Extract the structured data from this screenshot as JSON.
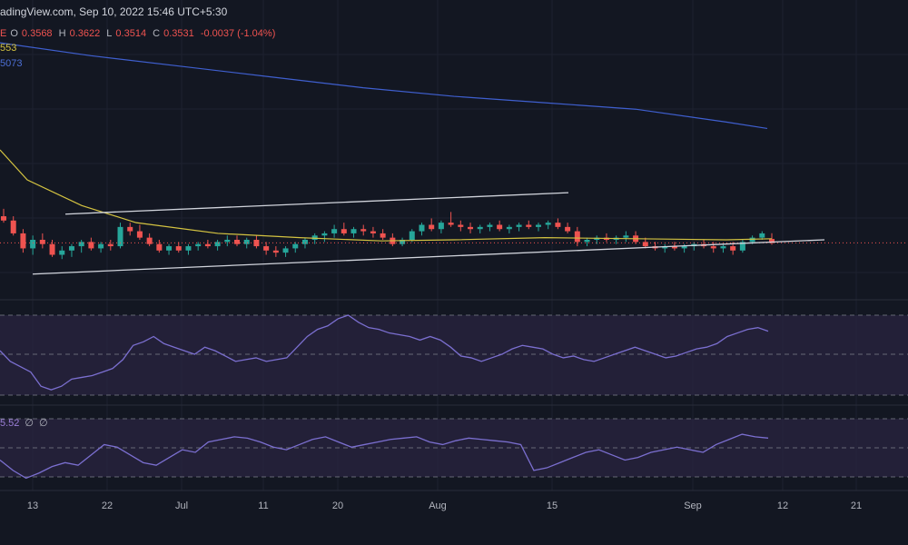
{
  "header": {
    "source": "adingView.com, Sep 10, 2022 15:46 UTC+5:30"
  },
  "ohlc": {
    "o_label": "O",
    "o": "0.3568",
    "h_label": "H",
    "h": "0.3622",
    "l_label": "L",
    "l": "0.3514",
    "c_label": "C",
    "c": "0.3531",
    "chg": "-0.0037 (-1.04%)",
    "prefix": "E"
  },
  "ma_fast": {
    "value": "553"
  },
  "ma_slow": {
    "value": "5073"
  },
  "indicator2": {
    "value": "5.52",
    "param1": "∅",
    "param2": "∅"
  },
  "colors": {
    "background": "#131722",
    "up": "#26a69a",
    "down": "#ef5350",
    "ma_fast": "#d4c341",
    "ma_slow": "#3f5fcf",
    "oscillator": "#7b6fd0",
    "band": "#2a2440",
    "trendline": "#d1d4dc"
  },
  "chart_data": {
    "type": "candlestick",
    "price_min": 0.3,
    "price_max": 0.58,
    "x_ticks": [
      "13",
      "22",
      "Jul",
      "11",
      "20",
      "Aug",
      "15",
      "Sep",
      "12",
      "21"
    ],
    "last_price": 0.3531,
    "candles": [
      [
        0.378,
        0.385,
        0.372,
        0.374
      ],
      [
        0.374,
        0.378,
        0.36,
        0.362
      ],
      [
        0.362,
        0.366,
        0.344,
        0.348
      ],
      [
        0.348,
        0.36,
        0.342,
        0.356
      ],
      [
        0.356,
        0.362,
        0.348,
        0.352
      ],
      [
        0.352,
        0.356,
        0.34,
        0.342
      ],
      [
        0.342,
        0.35,
        0.338,
        0.346
      ],
      [
        0.346,
        0.352,
        0.34,
        0.35
      ],
      [
        0.35,
        0.356,
        0.344,
        0.354
      ],
      [
        0.354,
        0.358,
        0.346,
        0.348
      ],
      [
        0.348,
        0.354,
        0.344,
        0.352
      ],
      [
        0.352,
        0.356,
        0.346,
        0.35
      ],
      [
        0.35,
        0.372,
        0.348,
        0.368
      ],
      [
        0.368,
        0.372,
        0.36,
        0.364
      ],
      [
        0.364,
        0.37,
        0.356,
        0.358
      ],
      [
        0.358,
        0.362,
        0.35,
        0.352
      ],
      [
        0.352,
        0.356,
        0.344,
        0.346
      ],
      [
        0.346,
        0.352,
        0.342,
        0.35
      ],
      [
        0.35,
        0.354,
        0.344,
        0.346
      ],
      [
        0.346,
        0.352,
        0.342,
        0.35
      ],
      [
        0.35,
        0.354,
        0.346,
        0.352
      ],
      [
        0.352,
        0.356,
        0.348,
        0.35
      ],
      [
        0.35,
        0.356,
        0.346,
        0.354
      ],
      [
        0.354,
        0.36,
        0.35,
        0.356
      ],
      [
        0.356,
        0.36,
        0.35,
        0.352
      ],
      [
        0.352,
        0.358,
        0.348,
        0.356
      ],
      [
        0.356,
        0.36,
        0.348,
        0.35
      ],
      [
        0.35,
        0.354,
        0.342,
        0.346
      ],
      [
        0.346,
        0.35,
        0.34,
        0.344
      ],
      [
        0.344,
        0.35,
        0.34,
        0.348
      ],
      [
        0.348,
        0.354,
        0.344,
        0.352
      ],
      [
        0.352,
        0.358,
        0.348,
        0.356
      ],
      [
        0.356,
        0.362,
        0.352,
        0.36
      ],
      [
        0.36,
        0.364,
        0.354,
        0.362
      ],
      [
        0.362,
        0.37,
        0.358,
        0.366
      ],
      [
        0.366,
        0.372,
        0.36,
        0.362
      ],
      [
        0.362,
        0.368,
        0.358,
        0.366
      ],
      [
        0.366,
        0.37,
        0.36,
        0.364
      ],
      [
        0.364,
        0.368,
        0.358,
        0.362
      ],
      [
        0.362,
        0.366,
        0.356,
        0.358
      ],
      [
        0.358,
        0.362,
        0.35,
        0.352
      ],
      [
        0.352,
        0.358,
        0.35,
        0.356
      ],
      [
        0.356,
        0.366,
        0.354,
        0.364
      ],
      [
        0.364,
        0.372,
        0.36,
        0.37
      ],
      [
        0.37,
        0.376,
        0.364,
        0.366
      ],
      [
        0.366,
        0.374,
        0.362,
        0.372
      ],
      [
        0.372,
        0.382,
        0.368,
        0.37
      ],
      [
        0.37,
        0.374,
        0.364,
        0.368
      ],
      [
        0.368,
        0.372,
        0.362,
        0.366
      ],
      [
        0.366,
        0.37,
        0.362,
        0.368
      ],
      [
        0.368,
        0.372,
        0.364,
        0.37
      ],
      [
        0.37,
        0.374,
        0.364,
        0.366
      ],
      [
        0.366,
        0.37,
        0.362,
        0.368
      ],
      [
        0.368,
        0.372,
        0.364,
        0.37
      ],
      [
        0.37,
        0.374,
        0.366,
        0.368
      ],
      [
        0.368,
        0.372,
        0.364,
        0.37
      ],
      [
        0.37,
        0.374,
        0.366,
        0.372
      ],
      [
        0.372,
        0.376,
        0.366,
        0.368
      ],
      [
        0.368,
        0.372,
        0.362,
        0.364
      ],
      [
        0.364,
        0.368,
        0.35,
        0.354
      ],
      [
        0.354,
        0.358,
        0.35,
        0.356
      ],
      [
        0.356,
        0.36,
        0.352,
        0.358
      ],
      [
        0.358,
        0.362,
        0.354,
        0.356
      ],
      [
        0.356,
        0.36,
        0.352,
        0.358
      ],
      [
        0.358,
        0.364,
        0.354,
        0.36
      ],
      [
        0.36,
        0.364,
        0.352,
        0.354
      ],
      [
        0.354,
        0.358,
        0.348,
        0.35
      ],
      [
        0.35,
        0.354,
        0.346,
        0.348
      ],
      [
        0.348,
        0.352,
        0.344,
        0.35
      ],
      [
        0.35,
        0.354,
        0.346,
        0.348
      ],
      [
        0.348,
        0.352,
        0.344,
        0.35
      ],
      [
        0.35,
        0.354,
        0.346,
        0.352
      ],
      [
        0.352,
        0.356,
        0.348,
        0.35
      ],
      [
        0.35,
        0.354,
        0.344,
        0.348
      ],
      [
        0.348,
        0.352,
        0.344,
        0.35
      ],
      [
        0.35,
        0.354,
        0.342,
        0.346
      ],
      [
        0.346,
        0.356,
        0.344,
        0.354
      ],
      [
        0.354,
        0.36,
        0.352,
        0.358
      ],
      [
        0.358,
        0.364,
        0.356,
        0.362
      ],
      [
        0.3568,
        0.3622,
        0.3514,
        0.3531
      ]
    ],
    "ma_fast_points": [
      [
        0,
        0.44
      ],
      [
        30,
        0.412
      ],
      [
        90,
        0.388
      ],
      [
        150,
        0.372
      ],
      [
        240,
        0.362
      ],
      [
        330,
        0.358
      ],
      [
        420,
        0.355
      ],
      [
        500,
        0.356
      ],
      [
        600,
        0.358
      ],
      [
        700,
        0.357
      ],
      [
        800,
        0.356
      ],
      [
        850,
        0.357
      ]
    ],
    "ma_slow_points": [
      [
        0,
        0.54
      ],
      [
        100,
        0.528
      ],
      [
        200,
        0.518
      ],
      [
        300,
        0.508
      ],
      [
        400,
        0.498
      ],
      [
        500,
        0.49
      ],
      [
        600,
        0.484
      ],
      [
        700,
        0.478
      ],
      [
        800,
        0.466
      ],
      [
        845,
        0.46
      ]
    ],
    "channel_top": [
      [
        72,
        0.38
      ],
      [
        626,
        0.4
      ]
    ],
    "channel_bottom": [
      [
        36,
        0.324
      ],
      [
        908,
        0.356
      ]
    ],
    "osc1": [
      50,
      44,
      41,
      38,
      30,
      28,
      30,
      34,
      35,
      36,
      38,
      40,
      45,
      53,
      55,
      58,
      54,
      52,
      50,
      48,
      52,
      50,
      47,
      44,
      45,
      46,
      44,
      45,
      46,
      52,
      58,
      62,
      64,
      68,
      70,
      66,
      63,
      62,
      60,
      59,
      58,
      56,
      58,
      56,
      52,
      47,
      46,
      44,
      46,
      48,
      51,
      53,
      52,
      51,
      48,
      46,
      47,
      45,
      44,
      46,
      48,
      50,
      52,
      50,
      48,
      46,
      47,
      49,
      51,
      52,
      54,
      58,
      60,
      62,
      63,
      61
    ],
    "osc2": [
      38,
      30,
      24,
      28,
      33,
      36,
      34,
      42,
      50,
      48,
      42,
      36,
      34,
      40,
      46,
      44,
      52,
      54,
      56,
      55,
      52,
      48,
      46,
      50,
      54,
      56,
      52,
      48,
      50,
      52,
      54,
      55,
      56,
      52,
      50,
      53,
      55,
      54,
      53,
      52,
      50,
      30,
      32,
      36,
      40,
      44,
      46,
      42,
      38,
      40,
      44,
      46,
      48,
      46,
      44,
      50,
      54,
      58,
      56,
      55
    ]
  }
}
